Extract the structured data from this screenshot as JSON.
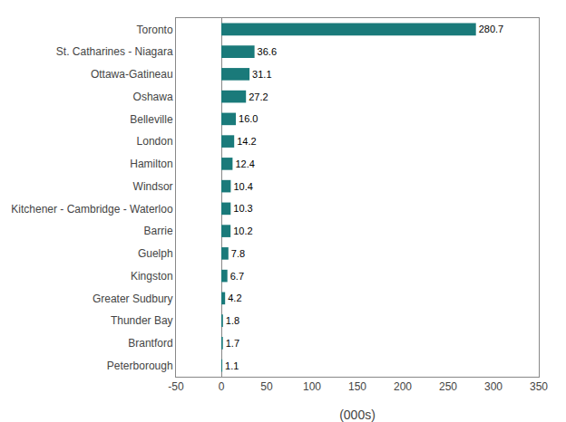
{
  "chart_data": {
    "type": "bar",
    "orientation": "horizontal",
    "categories": [
      "Peterborough",
      "Brantford",
      "Thunder Bay",
      "Greater Sudbury",
      "Kingston",
      "Guelph",
      "Barrie",
      "Kitchener - Cambridge - Waterloo",
      "Windsor",
      "Hamilton",
      "London",
      "Belleville",
      "Oshawa",
      "Ottawa-Gatineau",
      "St. Catharines - Niagara",
      "Toronto"
    ],
    "values": [
      1.1,
      1.7,
      1.8,
      4.2,
      6.7,
      7.8,
      10.2,
      10.3,
      10.4,
      12.4,
      14.2,
      16.0,
      27.2,
      31.1,
      36.6,
      280.7
    ],
    "value_labels": [
      "1.1",
      "1.7",
      "1.8",
      "4.2",
      "6.7",
      "7.8",
      "10.2",
      "10.3",
      "10.4",
      "12.4",
      "14.2",
      "16.0",
      "27.2",
      "31.1",
      "36.6",
      "280.7"
    ],
    "color": "#1a7a7a",
    "xlabel": "(000s)",
    "xlim": [
      -50,
      350
    ],
    "xticks": [
      -50,
      0,
      50,
      100,
      150,
      200,
      250,
      300,
      350
    ],
    "grid": false,
    "data_labels": true
  }
}
